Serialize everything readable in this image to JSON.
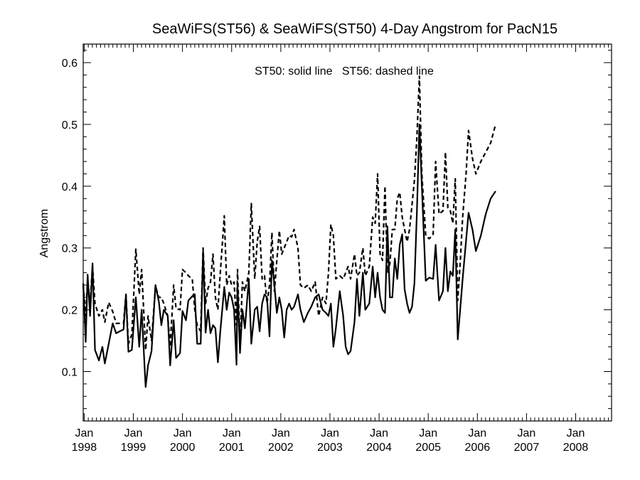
{
  "chart_data": {
    "type": "line",
    "title": "SeaWiFS(ST56) & SeaWiFS(ST50) 4-Day Angstrom for PacN15",
    "annotation": "ST50: solid line   ST56: dashed line",
    "xlabel": "",
    "ylabel": "Angstrom",
    "xlim": [
      1997.98,
      2008.73
    ],
    "ylim": [
      0.02,
      0.63
    ],
    "yticks": [
      0.1,
      0.2,
      0.3,
      0.4,
      0.5,
      0.6
    ],
    "xticks": [
      {
        "value": 1998,
        "month": "Jan",
        "year": "1998"
      },
      {
        "value": 1999,
        "month": "Jan",
        "year": "1999"
      },
      {
        "value": 2000,
        "month": "Jan",
        "year": "2000"
      },
      {
        "value": 2001,
        "month": "Jan",
        "year": "2001"
      },
      {
        "value": 2002,
        "month": "Jan",
        "year": "2002"
      },
      {
        "value": 2003,
        "month": "Jan",
        "year": "2003"
      },
      {
        "value": 2004,
        "month": "Jan",
        "year": "2004"
      },
      {
        "value": 2005,
        "month": "Jan",
        "year": "2005"
      },
      {
        "value": 2006,
        "month": "Jan",
        "year": "2006"
      },
      {
        "value": 2007,
        "month": "Jan",
        "year": "2007"
      },
      {
        "value": 2008,
        "month": "Jan",
        "year": "2008"
      }
    ],
    "grid": false,
    "series": [
      {
        "name": "ST50",
        "style": "solid",
        "color": "#000000",
        "points": [
          [
            1997.98,
            0.243
          ],
          [
            1998.03,
            0.148
          ],
          [
            1998.07,
            0.257
          ],
          [
            1998.12,
            0.19
          ],
          [
            1998.17,
            0.275
          ],
          [
            1998.22,
            0.135
          ],
          [
            1998.3,
            0.118
          ],
          [
            1998.37,
            0.14
          ],
          [
            1998.42,
            0.113
          ],
          [
            1998.5,
            0.145
          ],
          [
            1998.58,
            0.178
          ],
          [
            1998.65,
            0.162
          ],
          [
            1998.72,
            0.165
          ],
          [
            1998.8,
            0.168
          ],
          [
            1998.85,
            0.225
          ],
          [
            1998.9,
            0.132
          ],
          [
            1998.97,
            0.135
          ],
          [
            1999.05,
            0.22
          ],
          [
            1999.12,
            0.14
          ],
          [
            1999.17,
            0.2
          ],
          [
            1999.25,
            0.075
          ],
          [
            1999.3,
            0.11
          ],
          [
            1999.37,
            0.133
          ],
          [
            1999.45,
            0.24
          ],
          [
            1999.52,
            0.213
          ],
          [
            1999.57,
            0.175
          ],
          [
            1999.62,
            0.2
          ],
          [
            1999.7,
            0.19
          ],
          [
            1999.75,
            0.11
          ],
          [
            1999.82,
            0.183
          ],
          [
            1999.87,
            0.122
          ],
          [
            1999.95,
            0.13
          ],
          [
            2000.0,
            0.198
          ],
          [
            2000.07,
            0.183
          ],
          [
            2000.12,
            0.215
          ],
          [
            2000.2,
            0.222
          ],
          [
            2000.25,
            0.225
          ],
          [
            2000.3,
            0.145
          ],
          [
            2000.37,
            0.145
          ],
          [
            2000.42,
            0.295
          ],
          [
            2000.47,
            0.163
          ],
          [
            2000.52,
            0.2
          ],
          [
            2000.57,
            0.162
          ],
          [
            2000.62,
            0.175
          ],
          [
            2000.67,
            0.17
          ],
          [
            2000.72,
            0.115
          ],
          [
            2000.77,
            0.165
          ],
          [
            2000.85,
            0.237
          ],
          [
            2000.9,
            0.2
          ],
          [
            2000.95,
            0.228
          ],
          [
            2001.0,
            0.22
          ],
          [
            2001.05,
            0.2
          ],
          [
            2001.1,
            0.111
          ],
          [
            2001.12,
            0.24
          ],
          [
            2001.17,
            0.13
          ],
          [
            2001.22,
            0.2
          ],
          [
            2001.27,
            0.17
          ],
          [
            2001.35,
            0.25
          ],
          [
            2001.4,
            0.145
          ],
          [
            2001.47,
            0.2
          ],
          [
            2001.52,
            0.205
          ],
          [
            2001.57,
            0.165
          ],
          [
            2001.62,
            0.21
          ],
          [
            2001.67,
            0.225
          ],
          [
            2001.72,
            0.22
          ],
          [
            2001.77,
            0.157
          ],
          [
            2001.82,
            0.28
          ],
          [
            2001.87,
            0.24
          ],
          [
            2001.92,
            0.195
          ],
          [
            2001.97,
            0.22
          ],
          [
            2002.02,
            0.2
          ],
          [
            2002.07,
            0.155
          ],
          [
            2002.12,
            0.2
          ],
          [
            2002.17,
            0.21
          ],
          [
            2002.22,
            0.2
          ],
          [
            2002.27,
            0.205
          ],
          [
            2002.35,
            0.225
          ],
          [
            2002.4,
            0.2
          ],
          [
            2002.47,
            0.18
          ],
          [
            2002.55,
            0.195
          ],
          [
            2002.62,
            0.205
          ],
          [
            2002.7,
            0.22
          ],
          [
            2002.77,
            0.225
          ],
          [
            2002.85,
            0.2
          ],
          [
            2002.92,
            0.195
          ],
          [
            2002.97,
            0.19
          ],
          [
            2003.02,
            0.21
          ],
          [
            2003.07,
            0.14
          ],
          [
            2003.12,
            0.17
          ],
          [
            2003.2,
            0.23
          ],
          [
            2003.27,
            0.19
          ],
          [
            2003.32,
            0.14
          ],
          [
            2003.37,
            0.128
          ],
          [
            2003.42,
            0.133
          ],
          [
            2003.5,
            0.18
          ],
          [
            2003.55,
            0.25
          ],
          [
            2003.6,
            0.19
          ],
          [
            2003.67,
            0.26
          ],
          [
            2003.72,
            0.2
          ],
          [
            2003.8,
            0.21
          ],
          [
            2003.87,
            0.27
          ],
          [
            2003.92,
            0.22
          ],
          [
            2003.97,
            0.26
          ],
          [
            2004.02,
            0.22
          ],
          [
            2004.07,
            0.2
          ],
          [
            2004.12,
            0.195
          ],
          [
            2004.17,
            0.335
          ],
          [
            2004.22,
            0.22
          ],
          [
            2004.27,
            0.22
          ],
          [
            2004.32,
            0.283
          ],
          [
            2004.37,
            0.25
          ],
          [
            2004.42,
            0.305
          ],
          [
            2004.47,
            0.322
          ],
          [
            2004.52,
            0.233
          ],
          [
            2004.57,
            0.21
          ],
          [
            2004.62,
            0.195
          ],
          [
            2004.67,
            0.205
          ],
          [
            2004.72,
            0.243
          ],
          [
            2004.77,
            0.36
          ],
          [
            2004.82,
            0.5
          ],
          [
            2004.87,
            0.4
          ],
          [
            2004.95,
            0.247
          ],
          [
            2005.02,
            0.252
          ],
          [
            2005.1,
            0.25
          ],
          [
            2005.15,
            0.305
          ],
          [
            2005.22,
            0.215
          ],
          [
            2005.3,
            0.23
          ],
          [
            2005.35,
            0.3
          ],
          [
            2005.4,
            0.23
          ],
          [
            2005.45,
            0.262
          ],
          [
            2005.5,
            0.255
          ],
          [
            2005.55,
            0.33
          ],
          [
            2005.6,
            0.152
          ],
          [
            2005.65,
            0.2
          ],
          [
            2005.7,
            0.25
          ],
          [
            2005.77,
            0.312
          ],
          [
            2005.82,
            0.357
          ],
          [
            2005.9,
            0.33
          ],
          [
            2005.97,
            0.295
          ],
          [
            2006.07,
            0.32
          ],
          [
            2006.17,
            0.355
          ],
          [
            2006.27,
            0.38
          ],
          [
            2006.37,
            0.392
          ]
        ]
      },
      {
        "name": "ST56",
        "style": "dashed",
        "color": "#000000",
        "points": [
          [
            1997.98,
            0.24
          ],
          [
            1998.03,
            0.19
          ],
          [
            1998.07,
            0.25
          ],
          [
            1998.12,
            0.21
          ],
          [
            1998.17,
            0.27
          ],
          [
            1998.22,
            0.21
          ],
          [
            1998.3,
            0.19
          ],
          [
            1998.37,
            0.2
          ],
          [
            1998.42,
            0.18
          ],
          [
            1998.5,
            0.212
          ],
          [
            1998.58,
            0.197
          ],
          [
            1998.65,
            0.178
          ],
          [
            1998.72,
            0.178
          ],
          [
            1998.8,
            0.178
          ],
          [
            1998.85,
            0.225
          ],
          [
            1998.9,
            0.145
          ],
          [
            1998.97,
            0.16
          ],
          [
            1999.05,
            0.298
          ],
          [
            1999.12,
            0.225
          ],
          [
            1999.17,
            0.265
          ],
          [
            1999.25,
            0.135
          ],
          [
            1999.3,
            0.19
          ],
          [
            1999.37,
            0.15
          ],
          [
            1999.45,
            0.238
          ],
          [
            1999.52,
            0.22
          ],
          [
            1999.57,
            0.22
          ],
          [
            1999.62,
            0.21
          ],
          [
            1999.7,
            0.19
          ],
          [
            1999.75,
            0.14
          ],
          [
            1999.82,
            0.24
          ],
          [
            1999.87,
            0.202
          ],
          [
            1999.95,
            0.2
          ],
          [
            2000.0,
            0.265
          ],
          [
            2000.07,
            0.26
          ],
          [
            2000.12,
            0.255
          ],
          [
            2000.2,
            0.25
          ],
          [
            2000.25,
            0.2
          ],
          [
            2000.3,
            0.175
          ],
          [
            2000.37,
            0.165
          ],
          [
            2000.42,
            0.3
          ],
          [
            2000.47,
            0.21
          ],
          [
            2000.52,
            0.235
          ],
          [
            2000.57,
            0.245
          ],
          [
            2000.62,
            0.29
          ],
          [
            2000.67,
            0.22
          ],
          [
            2000.72,
            0.2
          ],
          [
            2000.77,
            0.26
          ],
          [
            2000.85,
            0.352
          ],
          [
            2000.9,
            0.24
          ],
          [
            2000.95,
            0.255
          ],
          [
            2001.0,
            0.24
          ],
          [
            2001.05,
            0.245
          ],
          [
            2001.1,
            0.175
          ],
          [
            2001.12,
            0.265
          ],
          [
            2001.17,
            0.145
          ],
          [
            2001.22,
            0.245
          ],
          [
            2001.27,
            0.23
          ],
          [
            2001.35,
            0.26
          ],
          [
            2001.4,
            0.372
          ],
          [
            2001.47,
            0.25
          ],
          [
            2001.52,
            0.31
          ],
          [
            2001.57,
            0.335
          ],
          [
            2001.62,
            0.25
          ],
          [
            2001.67,
            0.255
          ],
          [
            2001.72,
            0.21
          ],
          [
            2001.77,
            0.24
          ],
          [
            2001.82,
            0.325
          ],
          [
            2001.87,
            0.23
          ],
          [
            2001.92,
            0.28
          ],
          [
            2001.97,
            0.328
          ],
          [
            2002.02,
            0.29
          ],
          [
            2002.07,
            0.3
          ],
          [
            2002.12,
            0.31
          ],
          [
            2002.17,
            0.32
          ],
          [
            2002.22,
            0.318
          ],
          [
            2002.27,
            0.33
          ],
          [
            2002.35,
            0.3
          ],
          [
            2002.4,
            0.24
          ],
          [
            2002.47,
            0.235
          ],
          [
            2002.55,
            0.24
          ],
          [
            2002.62,
            0.23
          ],
          [
            2002.7,
            0.245
          ],
          [
            2002.77,
            0.19
          ],
          [
            2002.85,
            0.22
          ],
          [
            2002.92,
            0.21
          ],
          [
            2002.97,
            0.26
          ],
          [
            2003.02,
            0.338
          ],
          [
            2003.07,
            0.32
          ],
          [
            2003.12,
            0.25
          ],
          [
            2003.2,
            0.255
          ],
          [
            2003.27,
            0.25
          ],
          [
            2003.32,
            0.26
          ],
          [
            2003.37,
            0.27
          ],
          [
            2003.42,
            0.25
          ],
          [
            2003.5,
            0.29
          ],
          [
            2003.55,
            0.255
          ],
          [
            2003.6,
            0.26
          ],
          [
            2003.67,
            0.3
          ],
          [
            2003.72,
            0.255
          ],
          [
            2003.8,
            0.27
          ],
          [
            2003.87,
            0.35
          ],
          [
            2003.92,
            0.34
          ],
          [
            2003.97,
            0.42
          ],
          [
            2004.02,
            0.29
          ],
          [
            2004.07,
            0.28
          ],
          [
            2004.12,
            0.4
          ],
          [
            2004.17,
            0.26
          ],
          [
            2004.22,
            0.275
          ],
          [
            2004.27,
            0.33
          ],
          [
            2004.32,
            0.33
          ],
          [
            2004.37,
            0.38
          ],
          [
            2004.42,
            0.39
          ],
          [
            2004.47,
            0.35
          ],
          [
            2004.52,
            0.33
          ],
          [
            2004.57,
            0.31
          ],
          [
            2004.62,
            0.33
          ],
          [
            2004.67,
            0.37
          ],
          [
            2004.72,
            0.41
          ],
          [
            2004.77,
            0.48
          ],
          [
            2004.82,
            0.578
          ],
          [
            2004.87,
            0.42
          ],
          [
            2004.95,
            0.32
          ],
          [
            2005.02,
            0.315
          ],
          [
            2005.1,
            0.322
          ],
          [
            2005.15,
            0.44
          ],
          [
            2005.22,
            0.355
          ],
          [
            2005.3,
            0.36
          ],
          [
            2005.35,
            0.455
          ],
          [
            2005.4,
            0.365
          ],
          [
            2005.45,
            0.36
          ],
          [
            2005.5,
            0.34
          ],
          [
            2005.55,
            0.412
          ],
          [
            2005.6,
            0.215
          ],
          [
            2005.65,
            0.275
          ],
          [
            2005.7,
            0.35
          ],
          [
            2005.77,
            0.42
          ],
          [
            2005.82,
            0.49
          ],
          [
            2005.9,
            0.445
          ],
          [
            2005.97,
            0.42
          ],
          [
            2006.07,
            0.44
          ],
          [
            2006.17,
            0.455
          ],
          [
            2006.27,
            0.47
          ],
          [
            2006.37,
            0.5
          ]
        ]
      }
    ]
  }
}
